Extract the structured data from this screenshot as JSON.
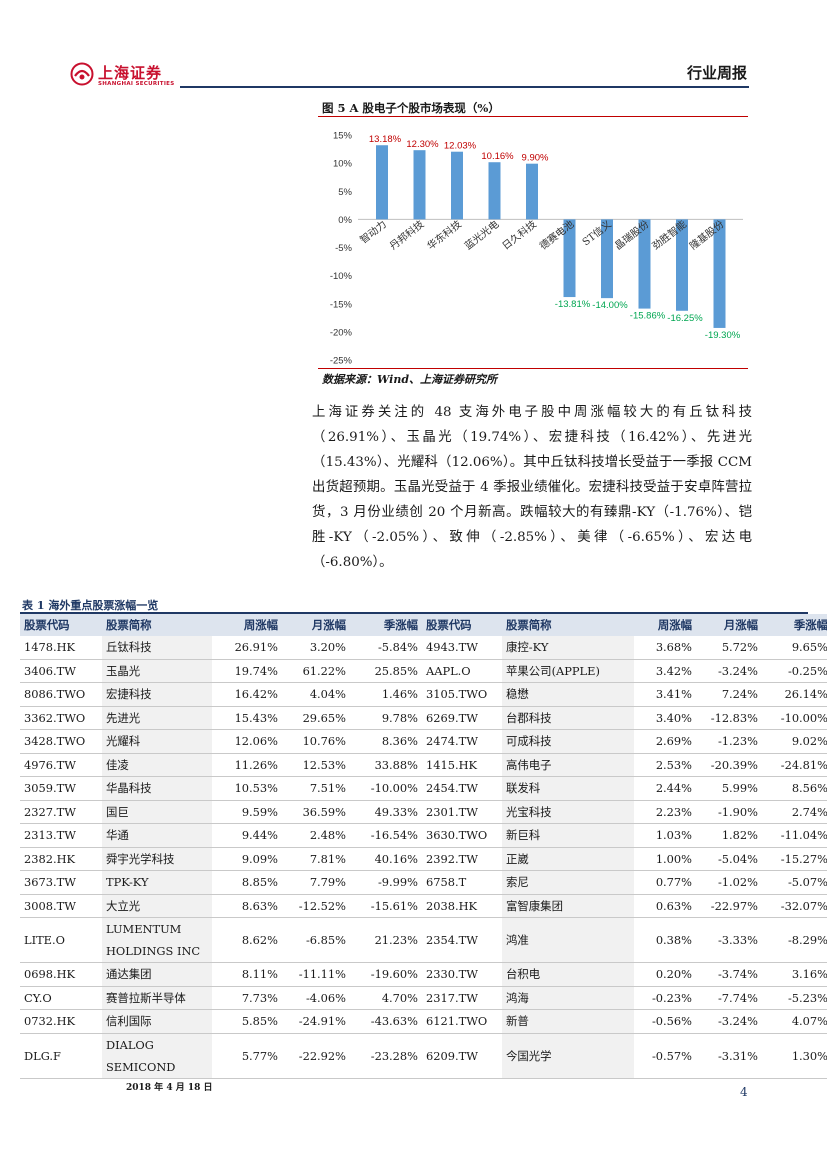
{
  "header": {
    "logo_cn": "上海证券",
    "logo_en": "SHANGHAI SECURITIES",
    "report_type": "行业周报"
  },
  "figure": {
    "title": "图 5   A 股电子个股市场表现（%）",
    "source": "数据来源：Wind、上海证券研究所"
  },
  "chart_data": {
    "type": "bar",
    "categories": [
      "智动力",
      "丹邦科技",
      "华东科技",
      "蓝光光电",
      "日久科技",
      "德赛电池",
      "ST信义",
      "晶瑞股份",
      "劲胜智能",
      "隆基股份"
    ],
    "values": [
      13.18,
      12.3,
      12.03,
      10.16,
      9.9,
      -13.81,
      -14.0,
      -15.86,
      -16.25,
      -19.3
    ],
    "value_labels": [
      "13.18%",
      "12.30%",
      "12.03%",
      "10.16%",
      "9.90%",
      "-13.81%",
      "-14.00%",
      "-15.86%",
      "-16.25%",
      "-19.30%"
    ],
    "yticks": [
      "15%",
      "10%",
      "5%",
      "0%",
      "-5%",
      "-10%",
      "-15%",
      "-20%",
      "-25%"
    ],
    "ylim": [
      -25,
      15
    ],
    "bar_color": "#5b9bd5",
    "positive_label_color": "#c00000",
    "negative_label_color": "#00a651",
    "grid": false
  },
  "paragraph": "上海证券关注的 48 支海外电子股中周涨幅较大的有丘钛科技（26.91%）、玉晶光（19.74%）、宏捷科技（16.42%）、先进光（15.43%）、光耀科（12.06%）。其中丘钛科技增长受益于一季报 CCM 出货超预期。玉晶光受益于 4 季报业绩催化。宏捷科技受益于安卓阵营拉货，3 月份业绩创 20 个月新高。跌幅较大的有臻鼎-KY（-1.76%）、铠胜-KY（-2.05%）、致伸（-2.85%）、美律（-6.65%）、宏达电（-6.80%）。",
  "table": {
    "title": "表 1 海外重点股票涨幅一览",
    "headers": [
      "股票代码",
      "股票简称",
      "周涨幅",
      "月涨幅",
      "季涨幅",
      "股票代码",
      "股票简称",
      "周涨幅",
      "月涨幅",
      "季涨幅"
    ],
    "rows": [
      [
        "1478.HK",
        "丘钛科技",
        "26.91%",
        "3.20%",
        "-5.84%",
        "4943.TW",
        "康控-KY",
        "3.68%",
        "5.72%",
        "9.65%"
      ],
      [
        "3406.TW",
        "玉晶光",
        "19.74%",
        "61.22%",
        "25.85%",
        "AAPL.O",
        "苹果公司(APPLE)",
        "3.42%",
        "-3.24%",
        "-0.25%"
      ],
      [
        "8086.TWO",
        "宏捷科技",
        "16.42%",
        "4.04%",
        "1.46%",
        "3105.TWO",
        "稳懋",
        "3.41%",
        "7.24%",
        "26.14%"
      ],
      [
        "3362.TWO",
        "先进光",
        "15.43%",
        "29.65%",
        "9.78%",
        "6269.TW",
        "台郡科技",
        "3.40%",
        "-12.83%",
        "-10.00%"
      ],
      [
        "3428.TWO",
        "光耀科",
        "12.06%",
        "10.76%",
        "8.36%",
        "2474.TW",
        "可成科技",
        "2.69%",
        "-1.23%",
        "9.02%"
      ],
      [
        "4976.TW",
        "佳凌",
        "11.26%",
        "12.53%",
        "33.88%",
        "1415.HK",
        "高伟电子",
        "2.53%",
        "-20.39%",
        "-24.81%"
      ],
      [
        "3059.TW",
        "华晶科技",
        "10.53%",
        "7.51%",
        "-10.00%",
        "2454.TW",
        "联发科",
        "2.44%",
        "5.99%",
        "8.56%"
      ],
      [
        "2327.TW",
        "国巨",
        "9.59%",
        "36.59%",
        "49.33%",
        "2301.TW",
        "光宝科技",
        "2.23%",
        "-1.90%",
        "2.74%"
      ],
      [
        "2313.TW",
        "华通",
        "9.44%",
        "2.48%",
        "-16.54%",
        "3630.TWO",
        "新巨科",
        "1.03%",
        "1.82%",
        "-11.04%"
      ],
      [
        "2382.HK",
        "舜宇光学科技",
        "9.09%",
        "7.81%",
        "40.16%",
        "2392.TW",
        "正崴",
        "1.00%",
        "-5.04%",
        "-15.27%"
      ],
      [
        "3673.TW",
        "TPK-KY",
        "8.85%",
        "7.79%",
        "-9.99%",
        "6758.T",
        "索尼",
        "0.77%",
        "-1.02%",
        "-5.07%"
      ],
      [
        "3008.TW",
        "大立光",
        "8.63%",
        "-12.52%",
        "-15.61%",
        "2038.HK",
        "富智康集团",
        "0.63%",
        "-22.97%",
        "-32.07%"
      ],
      [
        "LITE.O",
        "LUMENTUM HOLDINGS INC",
        "8.62%",
        "-6.85%",
        "21.23%",
        "2354.TW",
        "鸿准",
        "0.38%",
        "-3.33%",
        "-8.29%"
      ],
      [
        "0698.HK",
        "通达集团",
        "8.11%",
        "-11.11%",
        "-19.60%",
        "2330.TW",
        "台积电",
        "0.20%",
        "-3.74%",
        "3.16%"
      ],
      [
        "CY.O",
        "赛普拉斯半导体",
        "7.73%",
        "-4.06%",
        "4.70%",
        "2317.TW",
        "鸿海",
        "-0.23%",
        "-7.74%",
        "-5.23%"
      ],
      [
        "0732.HK",
        "信利国际",
        "5.85%",
        "-24.91%",
        "-43.63%",
        "6121.TWO",
        "新普",
        "-0.56%",
        "-3.24%",
        "4.07%"
      ],
      [
        "DLG.F",
        "DIALOG SEMICOND",
        "5.77%",
        "-22.92%",
        "-23.28%",
        "6209.TW",
        "今国光学",
        "-0.57%",
        "-3.31%",
        "1.30%"
      ]
    ]
  },
  "footer": {
    "date": "2018 年 4 月 18 日",
    "page": "4"
  }
}
